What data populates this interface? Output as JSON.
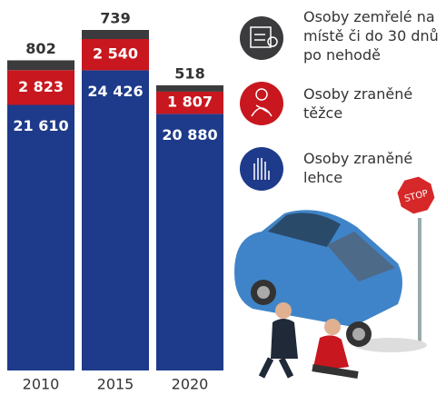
{
  "chart_data": {
    "type": "bar",
    "stacked": true,
    "categories": [
      "2010",
      "2015",
      "2020"
    ],
    "series": [
      {
        "name": "Osoby zemřelé na místě či do 30 dnů po nehodě",
        "color": "#3b3b3d",
        "values": [
          802,
          739,
          518
        ],
        "value_labels": [
          "802",
          "739",
          "518"
        ]
      },
      {
        "name": "Osoby zraněné těžce",
        "color": "#c8171e",
        "values": [
          2823,
          2540,
          1807
        ],
        "value_labels": [
          "2 823",
          "2 540",
          "1 807"
        ]
      },
      {
        "name": "Osoby zraněné lehce",
        "color": "#1e3a8a",
        "values": [
          21610,
          24426,
          20880
        ],
        "value_labels": [
          "21 610",
          "24 426",
          "20 880"
        ]
      }
    ]
  }
}
